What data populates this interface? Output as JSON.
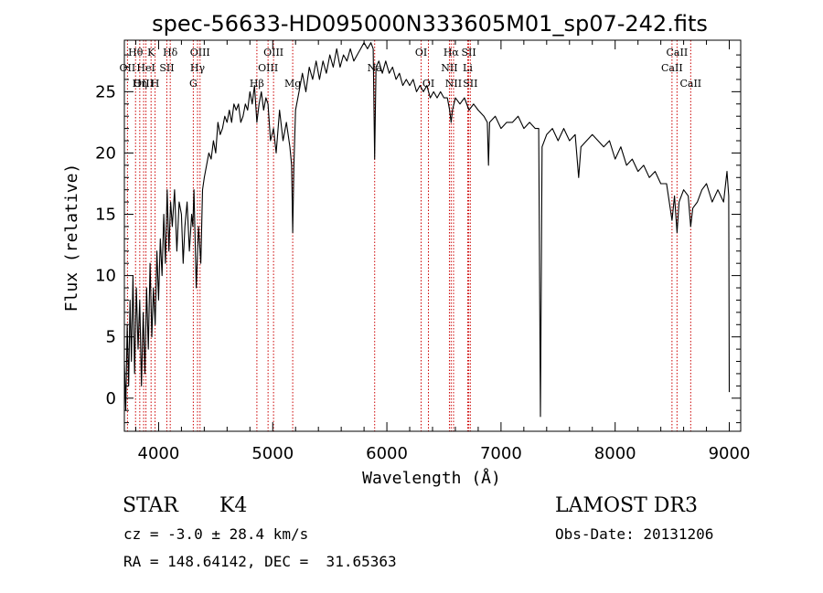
{
  "chart_data": {
    "type": "line",
    "title": "spec-56633-HD095000N333605M01_sp07-242.fits",
    "xlabel": "Wavelength (Å)",
    "ylabel": "Flux (relative)",
    "xlim": [
      3700,
      9100
    ],
    "ylim": [
      -2.7,
      29.2
    ],
    "xticks": [
      4000,
      5000,
      6000,
      7000,
      8000,
      9000
    ],
    "yticks": [
      0,
      5,
      10,
      15,
      20,
      25
    ],
    "grid": false,
    "colors": {
      "spectrum": "#000000",
      "lines": "#cc0000",
      "frame": "#000000"
    },
    "lines": [
      {
        "label": "Hθ",
        "x": 3798,
        "row": 0
      },
      {
        "label": "OII",
        "x": 3727,
        "row": 1
      },
      {
        "label": "OIII",
        "x": 3869,
        "row": 2
      },
      {
        "label": "K",
        "x": 3934,
        "row": 0
      },
      {
        "label": "HeI",
        "x": 3889,
        "row": 1
      },
      {
        "label": "Hη",
        "x": 3835,
        "row": 2
      },
      {
        "label": "H",
        "x": 3969,
        "row": 2
      },
      {
        "label": "SII",
        "x": 4072,
        "row": 1
      },
      {
        "label": "Hδ",
        "x": 4102,
        "row": 0
      },
      {
        "label": "OIII",
        "x": 4363,
        "row": 0
      },
      {
        "label": "Hγ",
        "x": 4341,
        "row": 1
      },
      {
        "label": "G",
        "x": 4304,
        "row": 2
      },
      {
        "label": "OIII",
        "x": 5007,
        "row": 0
      },
      {
        "label": "OIII",
        "x": 4959,
        "row": 1
      },
      {
        "label": "Hβ",
        "x": 4861,
        "row": 2
      },
      {
        "label": "Mg",
        "x": 5175,
        "row": 2
      },
      {
        "label": "Na",
        "x": 5893,
        "row": 1
      },
      {
        "label": "OI",
        "x": 6300,
        "row": 0
      },
      {
        "label": "OI",
        "x": 6364,
        "row": 2
      },
      {
        "label": "Hα",
        "x": 6563,
        "row": 0
      },
      {
        "label": "SII",
        "x": 6717,
        "row": 0
      },
      {
        "label": "NII",
        "x": 6548,
        "row": 1
      },
      {
        "label": "Li",
        "x": 6708,
        "row": 1
      },
      {
        "label": "NII",
        "x": 6584,
        "row": 2
      },
      {
        "label": "SII",
        "x": 6731,
        "row": 2
      },
      {
        "label": "CaII",
        "x": 8542,
        "row": 0
      },
      {
        "label": "CaII",
        "x": 8498,
        "row": 1
      },
      {
        "label": "CaII",
        "x": 8662,
        "row": 2
      }
    ],
    "series": [
      {
        "x": [
          3700,
          3712,
          3725,
          3738,
          3750,
          3762,
          3775,
          3790,
          3805,
          3820,
          3835,
          3850,
          3865,
          3880,
          3895,
          3910,
          3925,
          3940,
          3955,
          3970,
          3985,
          4000,
          4015,
          4030,
          4045,
          4060,
          4075,
          4090,
          4105,
          4120,
          4140,
          4160,
          4180,
          4200,
          4215,
          4230,
          4250,
          4270,
          4290,
          4300,
          4310,
          4330,
          4350,
          4370,
          4385,
          4400,
          4420,
          4440,
          4460,
          4480,
          4500,
          4520,
          4540,
          4560,
          4580,
          4600,
          4620,
          4640,
          4660,
          4680,
          4700,
          4720,
          4740,
          4760,
          4780,
          4800,
          4820,
          4840,
          4861,
          4880,
          4900,
          4920,
          4940,
          4959,
          4980,
          5007,
          5030,
          5060,
          5090,
          5120,
          5150,
          5165,
          5175,
          5185,
          5200,
          5230,
          5260,
          5290,
          5320,
          5350,
          5380,
          5410,
          5440,
          5470,
          5500,
          5530,
          5560,
          5590,
          5620,
          5650,
          5680,
          5710,
          5740,
          5770,
          5800,
          5830,
          5860,
          5880,
          5893,
          5905,
          5930,
          5960,
          5990,
          6020,
          6050,
          6080,
          6110,
          6140,
          6170,
          6200,
          6230,
          6260,
          6290,
          6320,
          6350,
          6380,
          6410,
          6440,
          6470,
          6500,
          6530,
          6550,
          6563,
          6575,
          6600,
          6640,
          6680,
          6720,
          6760,
          6800,
          6850,
          6880,
          6890,
          6900,
          6950,
          7000,
          7050,
          7100,
          7150,
          7200,
          7250,
          7300,
          7330,
          7345,
          7360,
          7400,
          7450,
          7500,
          7550,
          7600,
          7650,
          7680,
          7700,
          7750,
          7800,
          7850,
          7900,
          7950,
          8000,
          8050,
          8100,
          8150,
          8200,
          8250,
          8300,
          8350,
          8400,
          8450,
          8498,
          8520,
          8542,
          8560,
          8600,
          8640,
          8662,
          8680,
          8720,
          8760,
          8800,
          8850,
          8900,
          8950,
          8980,
          8995,
          9000
        ],
        "y": [
          3.0,
          -1.0,
          6.0,
          1.0,
          8.0,
          3.0,
          10.0,
          2.0,
          9.0,
          4.0,
          8.0,
          1.0,
          7.0,
          2.0,
          9.0,
          4.0,
          11.0,
          5.0,
          9.0,
          6.0,
          12.0,
          8.0,
          13.0,
          10.0,
          15.0,
          11.0,
          17.0,
          12.0,
          16.0,
          14.0,
          17.0,
          12.0,
          16.0,
          15.0,
          11.0,
          14.0,
          16.0,
          12.0,
          15.0,
          14.0,
          17.0,
          9.0,
          14.0,
          11.0,
          17.0,
          18.0,
          19.0,
          20.0,
          19.5,
          21.0,
          20.0,
          22.5,
          21.5,
          22.0,
          23.0,
          22.5,
          23.5,
          22.5,
          24.0,
          23.5,
          24.0,
          22.5,
          23.0,
          24.0,
          23.5,
          25.0,
          24.0,
          25.5,
          22.5,
          24.0,
          25.0,
          23.5,
          24.5,
          24.0,
          21.0,
          22.0,
          20.0,
          23.5,
          21.0,
          22.5,
          20.5,
          19.0,
          13.5,
          19.0,
          23.5,
          25.0,
          26.5,
          25.0,
          27.0,
          26.0,
          27.5,
          26.0,
          27.5,
          26.5,
          28.0,
          27.0,
          28.5,
          27.0,
          28.0,
          27.5,
          28.5,
          27.5,
          28.0,
          28.5,
          29.0,
          28.5,
          29.0,
          28.5,
          19.5,
          27.0,
          27.5,
          26.5,
          27.5,
          26.5,
          27.0,
          26.0,
          26.5,
          25.5,
          26.0,
          25.5,
          26.0,
          25.0,
          25.5,
          25.0,
          25.5,
          24.5,
          25.0,
          24.5,
          25.0,
          24.5,
          24.5,
          23.5,
          22.5,
          23.5,
          24.5,
          24.0,
          24.5,
          23.5,
          24.0,
          23.5,
          23.0,
          22.5,
          19.0,
          22.5,
          23.0,
          22.0,
          22.5,
          22.5,
          23.0,
          22.0,
          22.5,
          22.0,
          22.0,
          -1.5,
          20.5,
          21.5,
          22.0,
          21.0,
          22.0,
          21.0,
          21.5,
          18.0,
          20.5,
          21.0,
          21.5,
          21.0,
          20.5,
          21.0,
          19.5,
          20.5,
          19.0,
          19.5,
          18.5,
          19.0,
          18.0,
          18.5,
          17.5,
          17.5,
          14.5,
          16.5,
          13.5,
          16.0,
          17.0,
          16.5,
          14.0,
          15.5,
          16.0,
          17.0,
          17.5,
          16.0,
          17.0,
          16.0,
          18.5,
          16.5,
          0.5
        ]
      }
    ]
  },
  "footer": {
    "object_type": "STAR",
    "subclass": "K4",
    "survey": "LAMOST DR3",
    "cz": "cz = -3.0 ± 28.4 km/s",
    "obs_date": "Obs-Date: 20131206",
    "coords": "RA = 148.64142, DEC =  31.65363"
  }
}
